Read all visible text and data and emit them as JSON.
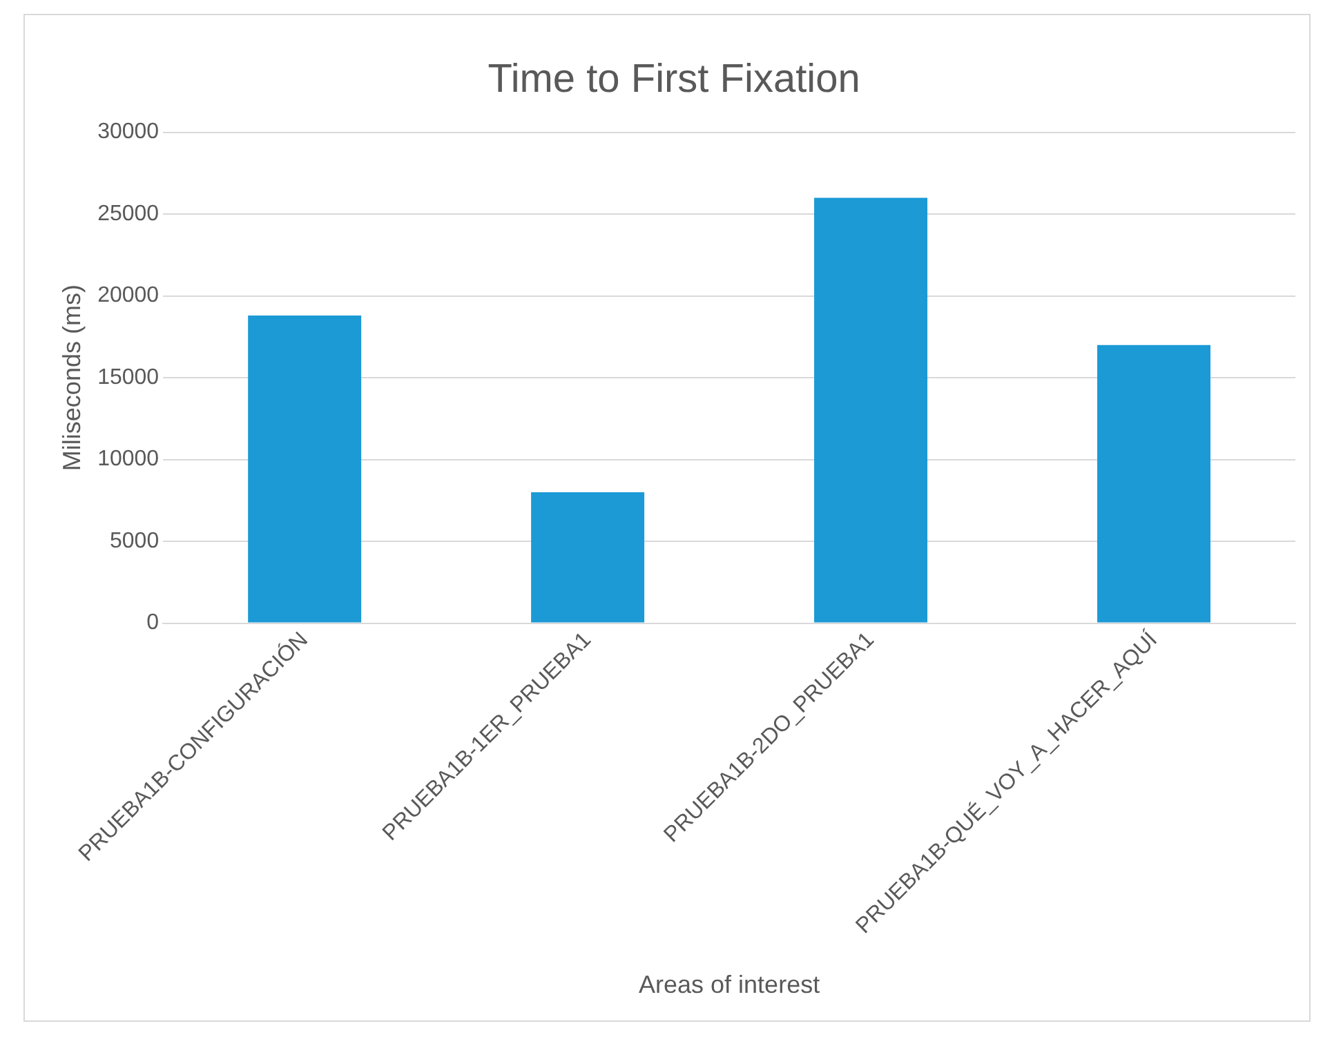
{
  "chart_data": {
    "type": "bar",
    "title": "Time to First Fixation",
    "xlabel": "Areas of interest",
    "ylabel": "Miliseconds (ms)",
    "categories": [
      "PRUEBA1B-CONFIGURACIÓN",
      "PRUEBA1B-1ER_PRUEBA1",
      "PRUEBA1B-2DO_PRUEBA1",
      "PRUEBA1B-QUÉ_VOY_A_HACER_AQUÍ"
    ],
    "values": [
      18800,
      8000,
      26000,
      17000
    ],
    "color": "#1b9ad6",
    "ylim": [
      0,
      30000
    ],
    "yticks": [
      0,
      5000,
      10000,
      15000,
      20000,
      25000,
      30000
    ],
    "grid": "y"
  }
}
